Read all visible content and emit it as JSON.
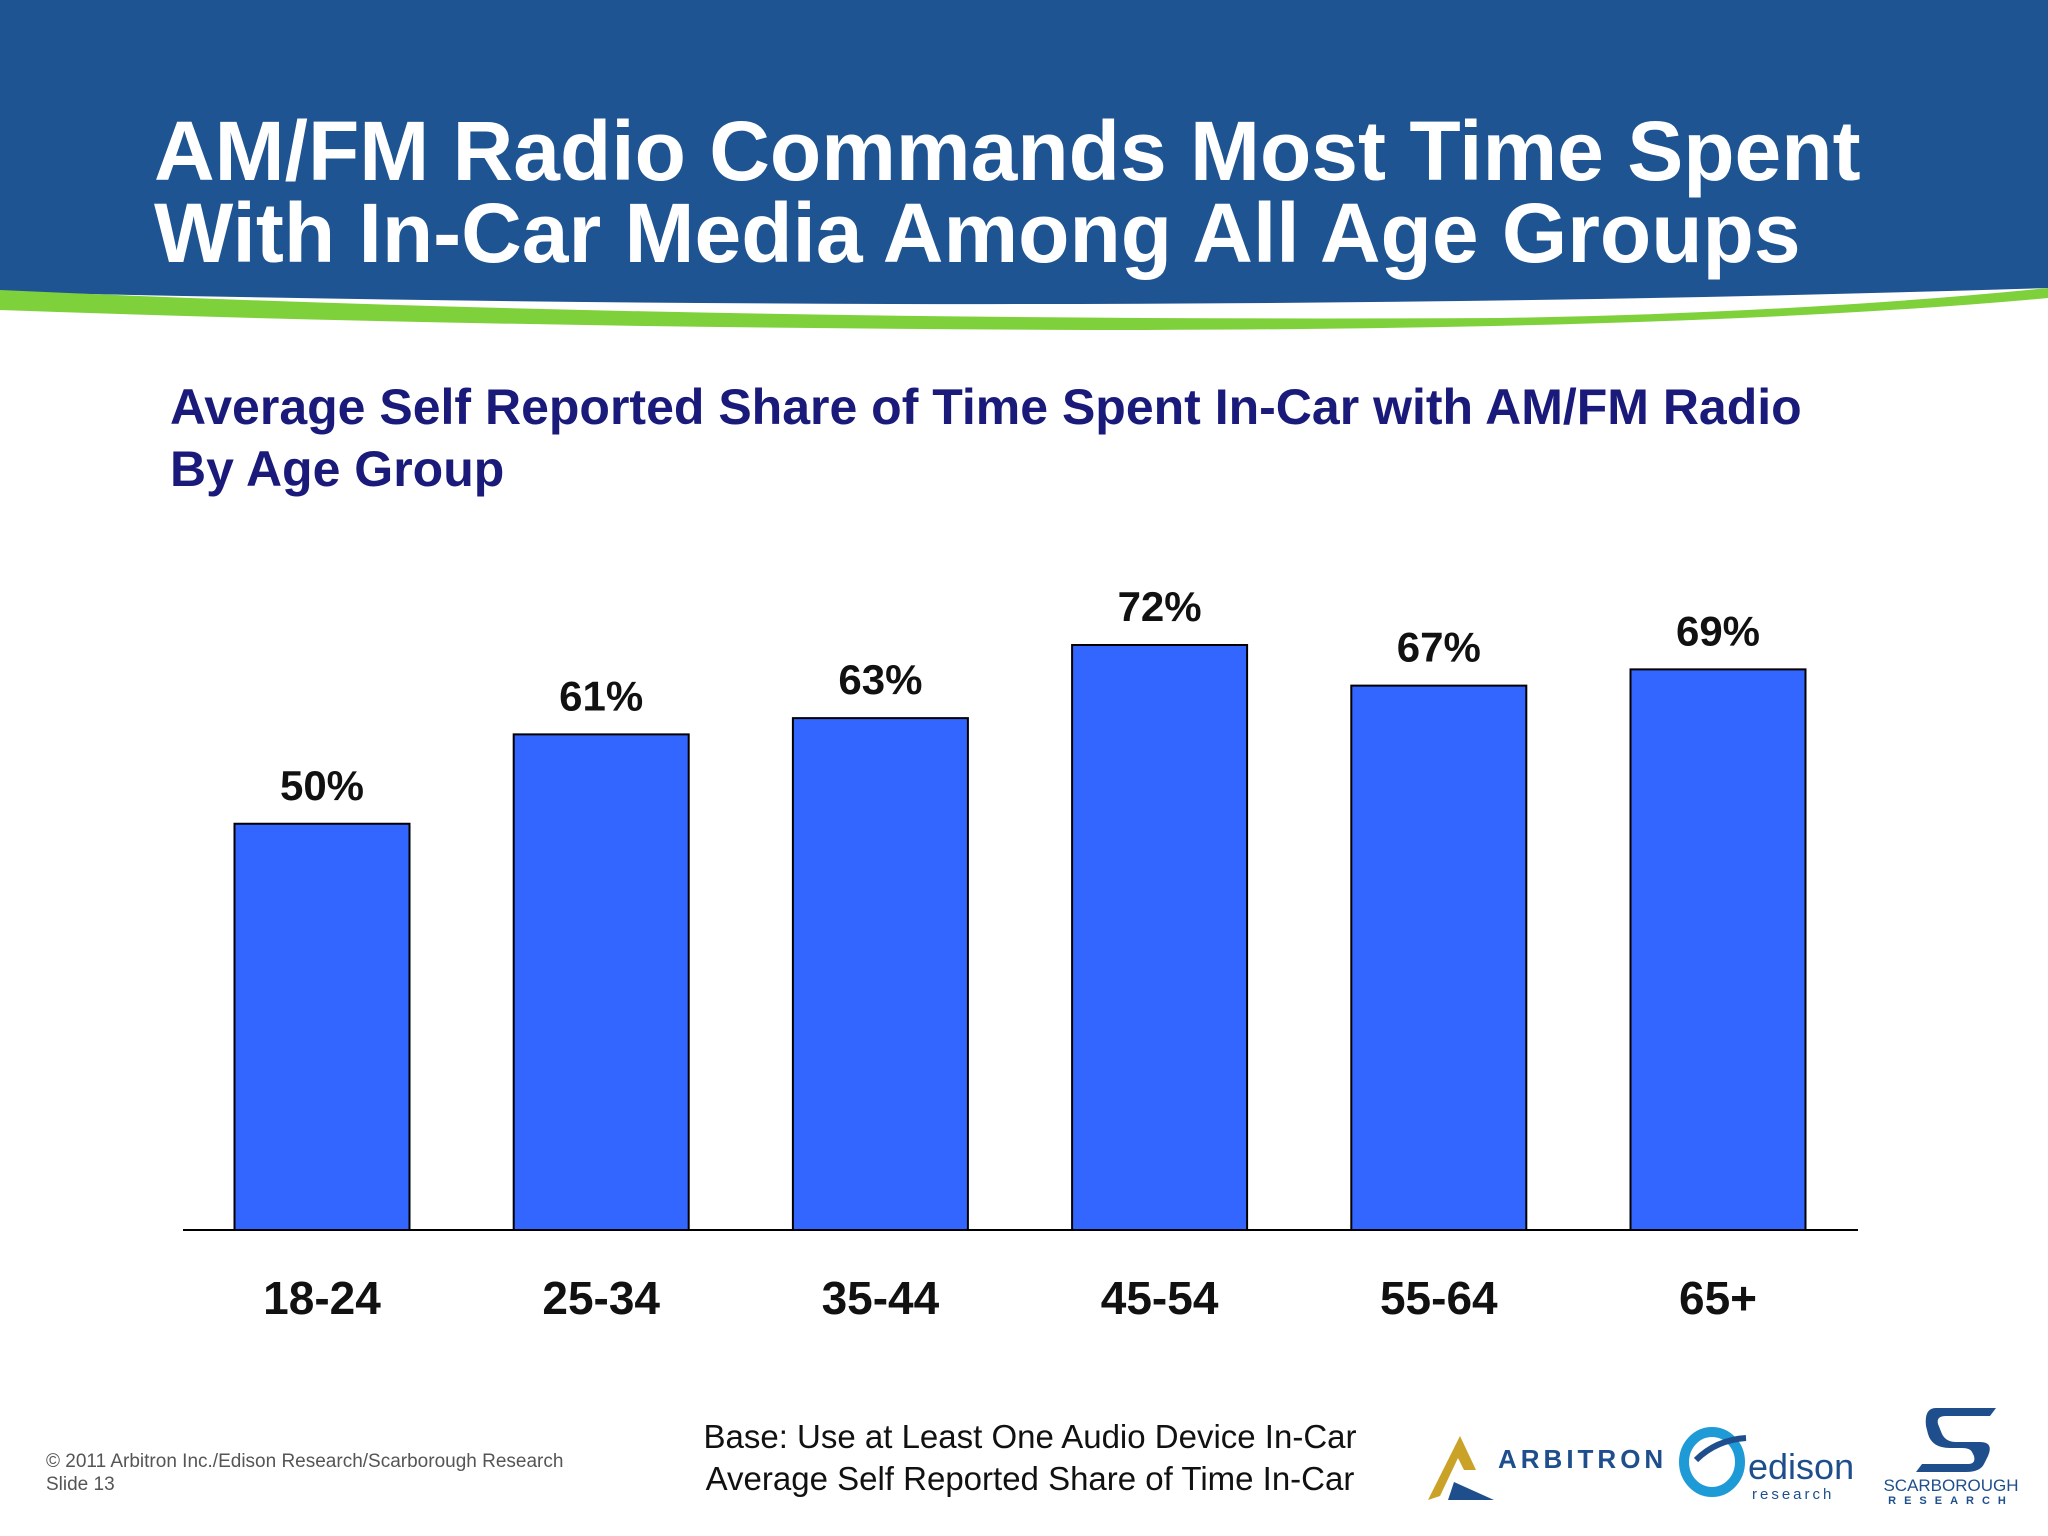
{
  "slide": {
    "title_line1": "AM/FM Radio Commands Most Time Spent",
    "title_line2": "With In-Car Media Among All Age Groups",
    "header_color": "#1f5493",
    "accent_color": "#7fd13b"
  },
  "chart_data": {
    "type": "bar",
    "title_line1": "Average Self Reported Share of Time Spent In-Car with AM/FM Radio",
    "title_line2": "By Age Group",
    "categories": [
      "18-24",
      "25-34",
      "35-44",
      "45-54",
      "55-64",
      "65+"
    ],
    "values": [
      50,
      61,
      63,
      72,
      67,
      69
    ],
    "data_labels": [
      "50%",
      "61%",
      "63%",
      "72%",
      "67%",
      "69%"
    ],
    "ylim": [
      0,
      80
    ],
    "bar_color": "#3366ff",
    "grid": false,
    "legend": "none"
  },
  "footer": {
    "copyright": "© 2011 Arbitron Inc./Edison Research/Scarborough Research",
    "slide_number": "Slide 13",
    "base_line1": "Base: Use at Least One Audio Device In-Car",
    "base_line2": "Average Self Reported Share of Time In-Car"
  },
  "logos": {
    "arbitron": "ARBITRON",
    "edison": "edison",
    "edison_sub": "research",
    "scarborough": "SCARBOROUGH",
    "scarborough_sub": "RESEARCH"
  }
}
